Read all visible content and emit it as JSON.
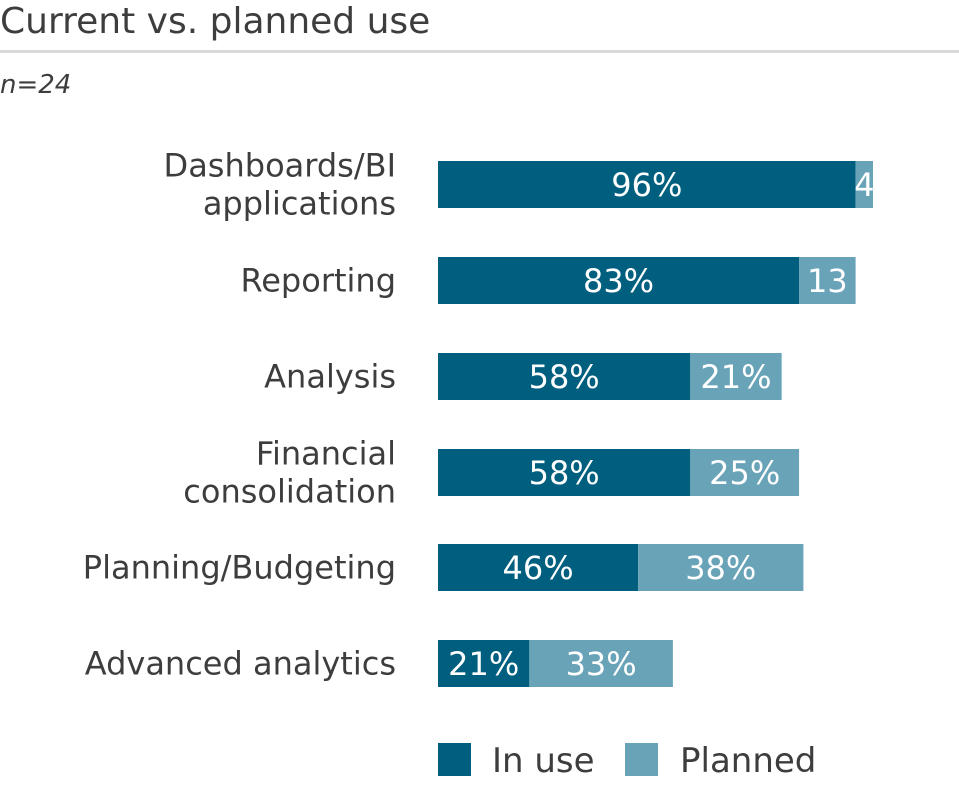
{
  "title": "Current vs. planned use",
  "subtitle": "n=24",
  "colors": {
    "in_use": "#005f7f",
    "planned": "#68a3b8",
    "text": "#3d3d3d",
    "bar_label": "#ffffff"
  },
  "chart_data": {
    "type": "bar",
    "orientation": "horizontal",
    "stacked": true,
    "categories": [
      [
        "Dashboards/BI",
        "applications"
      ],
      [
        "Reporting"
      ],
      [
        "Analysis"
      ],
      [
        "Financial",
        "consolidation"
      ],
      [
        "Planning/Budgeting"
      ],
      [
        "Advanced analytics"
      ]
    ],
    "series": [
      {
        "name": "In use",
        "values": [
          96,
          83,
          58,
          58,
          46,
          21
        ],
        "labels": [
          "96%",
          "83%",
          "58%",
          "58%",
          "46%",
          "21%"
        ]
      },
      {
        "name": "Planned",
        "values": [
          4,
          13,
          21,
          25,
          38,
          33
        ],
        "labels": [
          "4",
          "13",
          "21%",
          "25%",
          "38%",
          "33%"
        ]
      }
    ],
    "xlim": [
      0,
      100
    ],
    "unit": "%",
    "grid": false,
    "legend": "bottom"
  }
}
